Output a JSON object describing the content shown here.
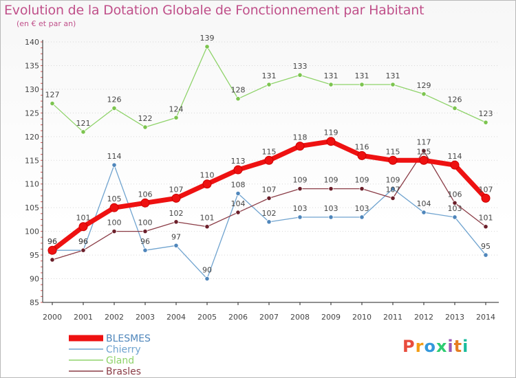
{
  "title": "Evolution de la Dotation Globale de Fonctionnement par Habitant",
  "subtitle": "(en € et par an)",
  "logo": {
    "text": "Proxiti",
    "colors": [
      "#e84c3d",
      "#f39c12",
      "#3498db",
      "#2ecc71",
      "#9b59b6",
      "#e67e22",
      "#1abc9c"
    ]
  },
  "chart_data": {
    "type": "line",
    "title": "Evolution de la Dotation Globale de Fonctionnement par Habitant",
    "subtitle": "(en € et par an)",
    "xlabel": "",
    "ylabel": "",
    "ylim": [
      85,
      140
    ],
    "yticks": [
      85,
      90,
      95,
      100,
      105,
      110,
      115,
      120,
      125,
      130,
      135,
      140
    ],
    "categories": [
      "2000",
      "2001",
      "2002",
      "2003",
      "2004",
      "2005",
      "2006",
      "2007",
      "2008",
      "2009",
      "2010",
      "2011",
      "2012",
      "2013",
      "2014"
    ],
    "grid": "horizontal",
    "legend_position": "bottom-left",
    "series": [
      {
        "name": "Gland",
        "color": "#8fd36a",
        "marker": "#7cc44f",
        "values": [
          127,
          121,
          126,
          122,
          124,
          139,
          128,
          131,
          133,
          131,
          131,
          131,
          129,
          126,
          123
        ]
      },
      {
        "name": "Chierry",
        "color": "#6fa3cf",
        "marker": "#4f86bb",
        "values": [
          96,
          96,
          114,
          96,
          97,
          90,
          108,
          102,
          103,
          103,
          103,
          109,
          104,
          103,
          95
        ]
      },
      {
        "name": "Brasles",
        "color": "#8a3b45",
        "marker": "#6b1f2a",
        "values": [
          94,
          96,
          100,
          100,
          102,
          101,
          104,
          107,
          109,
          109,
          109,
          107,
          117,
          106,
          101
        ]
      },
      {
        "name": "BLESMES",
        "color": "#ee1111",
        "marker": "#ee1111",
        "values": [
          96,
          101,
          105,
          106,
          107,
          110,
          113,
          115,
          118,
          119,
          116,
          115,
          115,
          114,
          107
        ]
      }
    ],
    "legend_order": [
      "BLESMES",
      "Chierry",
      "Gland",
      "Brasles"
    ]
  }
}
